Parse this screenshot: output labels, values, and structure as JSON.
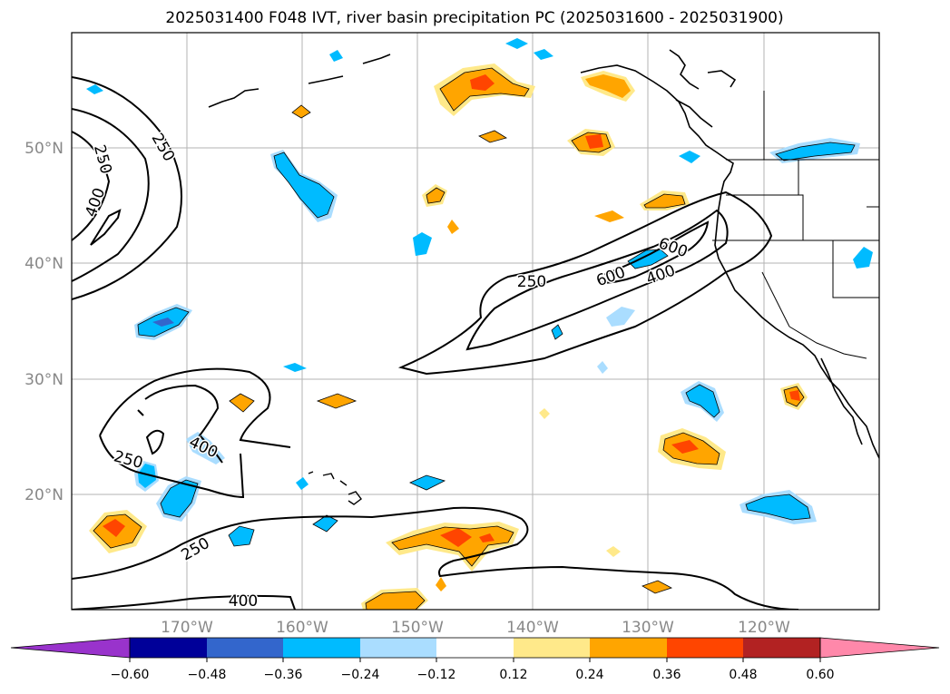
{
  "title": "2025031400 F048 IVT, river basin precipitation PC (2025031600 - 2025031900)",
  "map": {
    "lat_labels": [
      "50°N",
      "40°N",
      "30°N",
      "20°N"
    ],
    "lon_labels": [
      "170°W",
      "160°W",
      "150°W",
      "140°W",
      "130°W",
      "120°W"
    ],
    "lat_range": [
      10,
      60
    ],
    "lon_range": [
      -180,
      -110
    ],
    "gridlines": true,
    "ivt_contour_levels": [
      250,
      400,
      600
    ],
    "contour_labels": [
      {
        "text": "250",
        "where": "far west, north"
      },
      {
        "text": "250",
        "where": "far west, north"
      },
      {
        "text": "400",
        "where": "far west, north"
      },
      {
        "text": "250",
        "where": "central-east plume"
      },
      {
        "text": "600",
        "where": "central-east plume"
      },
      {
        "text": "600",
        "where": "central-east plume"
      },
      {
        "text": "400",
        "where": "central-east plume"
      },
      {
        "text": "250",
        "where": "southwest"
      },
      {
        "text": "400",
        "where": "southwest"
      },
      {
        "text": "250",
        "where": "south"
      },
      {
        "text": "400",
        "where": "south"
      }
    ]
  },
  "colorbar": {
    "ticks": [
      "−0.60",
      "−0.48",
      "−0.36",
      "−0.24",
      "−0.12",
      "0.12",
      "0.24",
      "0.36",
      "0.48",
      "0.60"
    ],
    "colors": [
      "#9933cc",
      "#000099",
      "#3366cc",
      "#00bbff",
      "#aaddff",
      "#ffffff",
      "#ffe98a",
      "#ffa500",
      "#ff4500",
      "#b22222",
      "#ff88aa"
    ],
    "extend": "both"
  }
}
